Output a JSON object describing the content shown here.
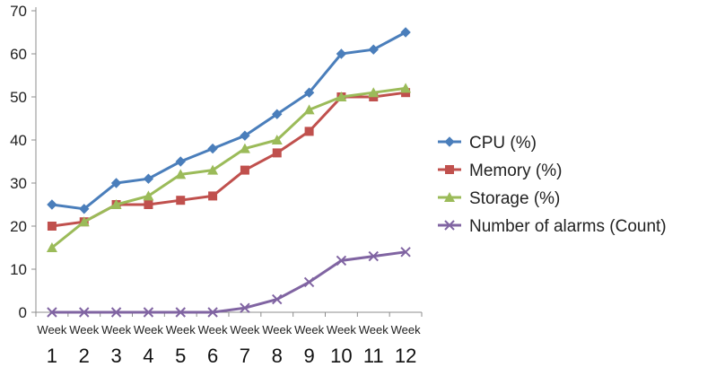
{
  "chart_data": {
    "type": "line",
    "categories": [
      "Week 1",
      "Week 2",
      "Week 3",
      "Week 4",
      "Week 5",
      "Week 6",
      "Week 7",
      "Week 8",
      "Week 9",
      "Week 10",
      "Week 11",
      "Week 12"
    ],
    "category_top": "Week",
    "category_numbers": [
      "1",
      "2",
      "3",
      "4",
      "5",
      "6",
      "7",
      "8",
      "9",
      "10",
      "11",
      "12"
    ],
    "ylim": [
      0,
      70
    ],
    "yticks": [
      0,
      10,
      20,
      30,
      40,
      50,
      60,
      70
    ],
    "grid": false,
    "legend_position": "right",
    "series": [
      {
        "name": "CPU (%)",
        "color": "#4a7ebb",
        "marker": "diamond",
        "values": [
          25,
          24,
          30,
          31,
          35,
          38,
          41,
          46,
          51,
          60,
          61,
          65
        ]
      },
      {
        "name": "Memory (%)",
        "color": "#c0504d",
        "marker": "square",
        "values": [
          20,
          21,
          25,
          25,
          26,
          27,
          33,
          37,
          42,
          50,
          50,
          51
        ]
      },
      {
        "name": "Storage (%)",
        "color": "#9bbb59",
        "marker": "triangle",
        "values": [
          15,
          21,
          25,
          27,
          32,
          33,
          38,
          40,
          47,
          50,
          51,
          52
        ]
      },
      {
        "name": "Number of alarms (Count)",
        "color": "#8064a2",
        "marker": "x",
        "values": [
          0,
          0,
          0,
          0,
          0,
          0,
          1,
          3,
          7,
          12,
          13,
          14
        ]
      }
    ]
  }
}
